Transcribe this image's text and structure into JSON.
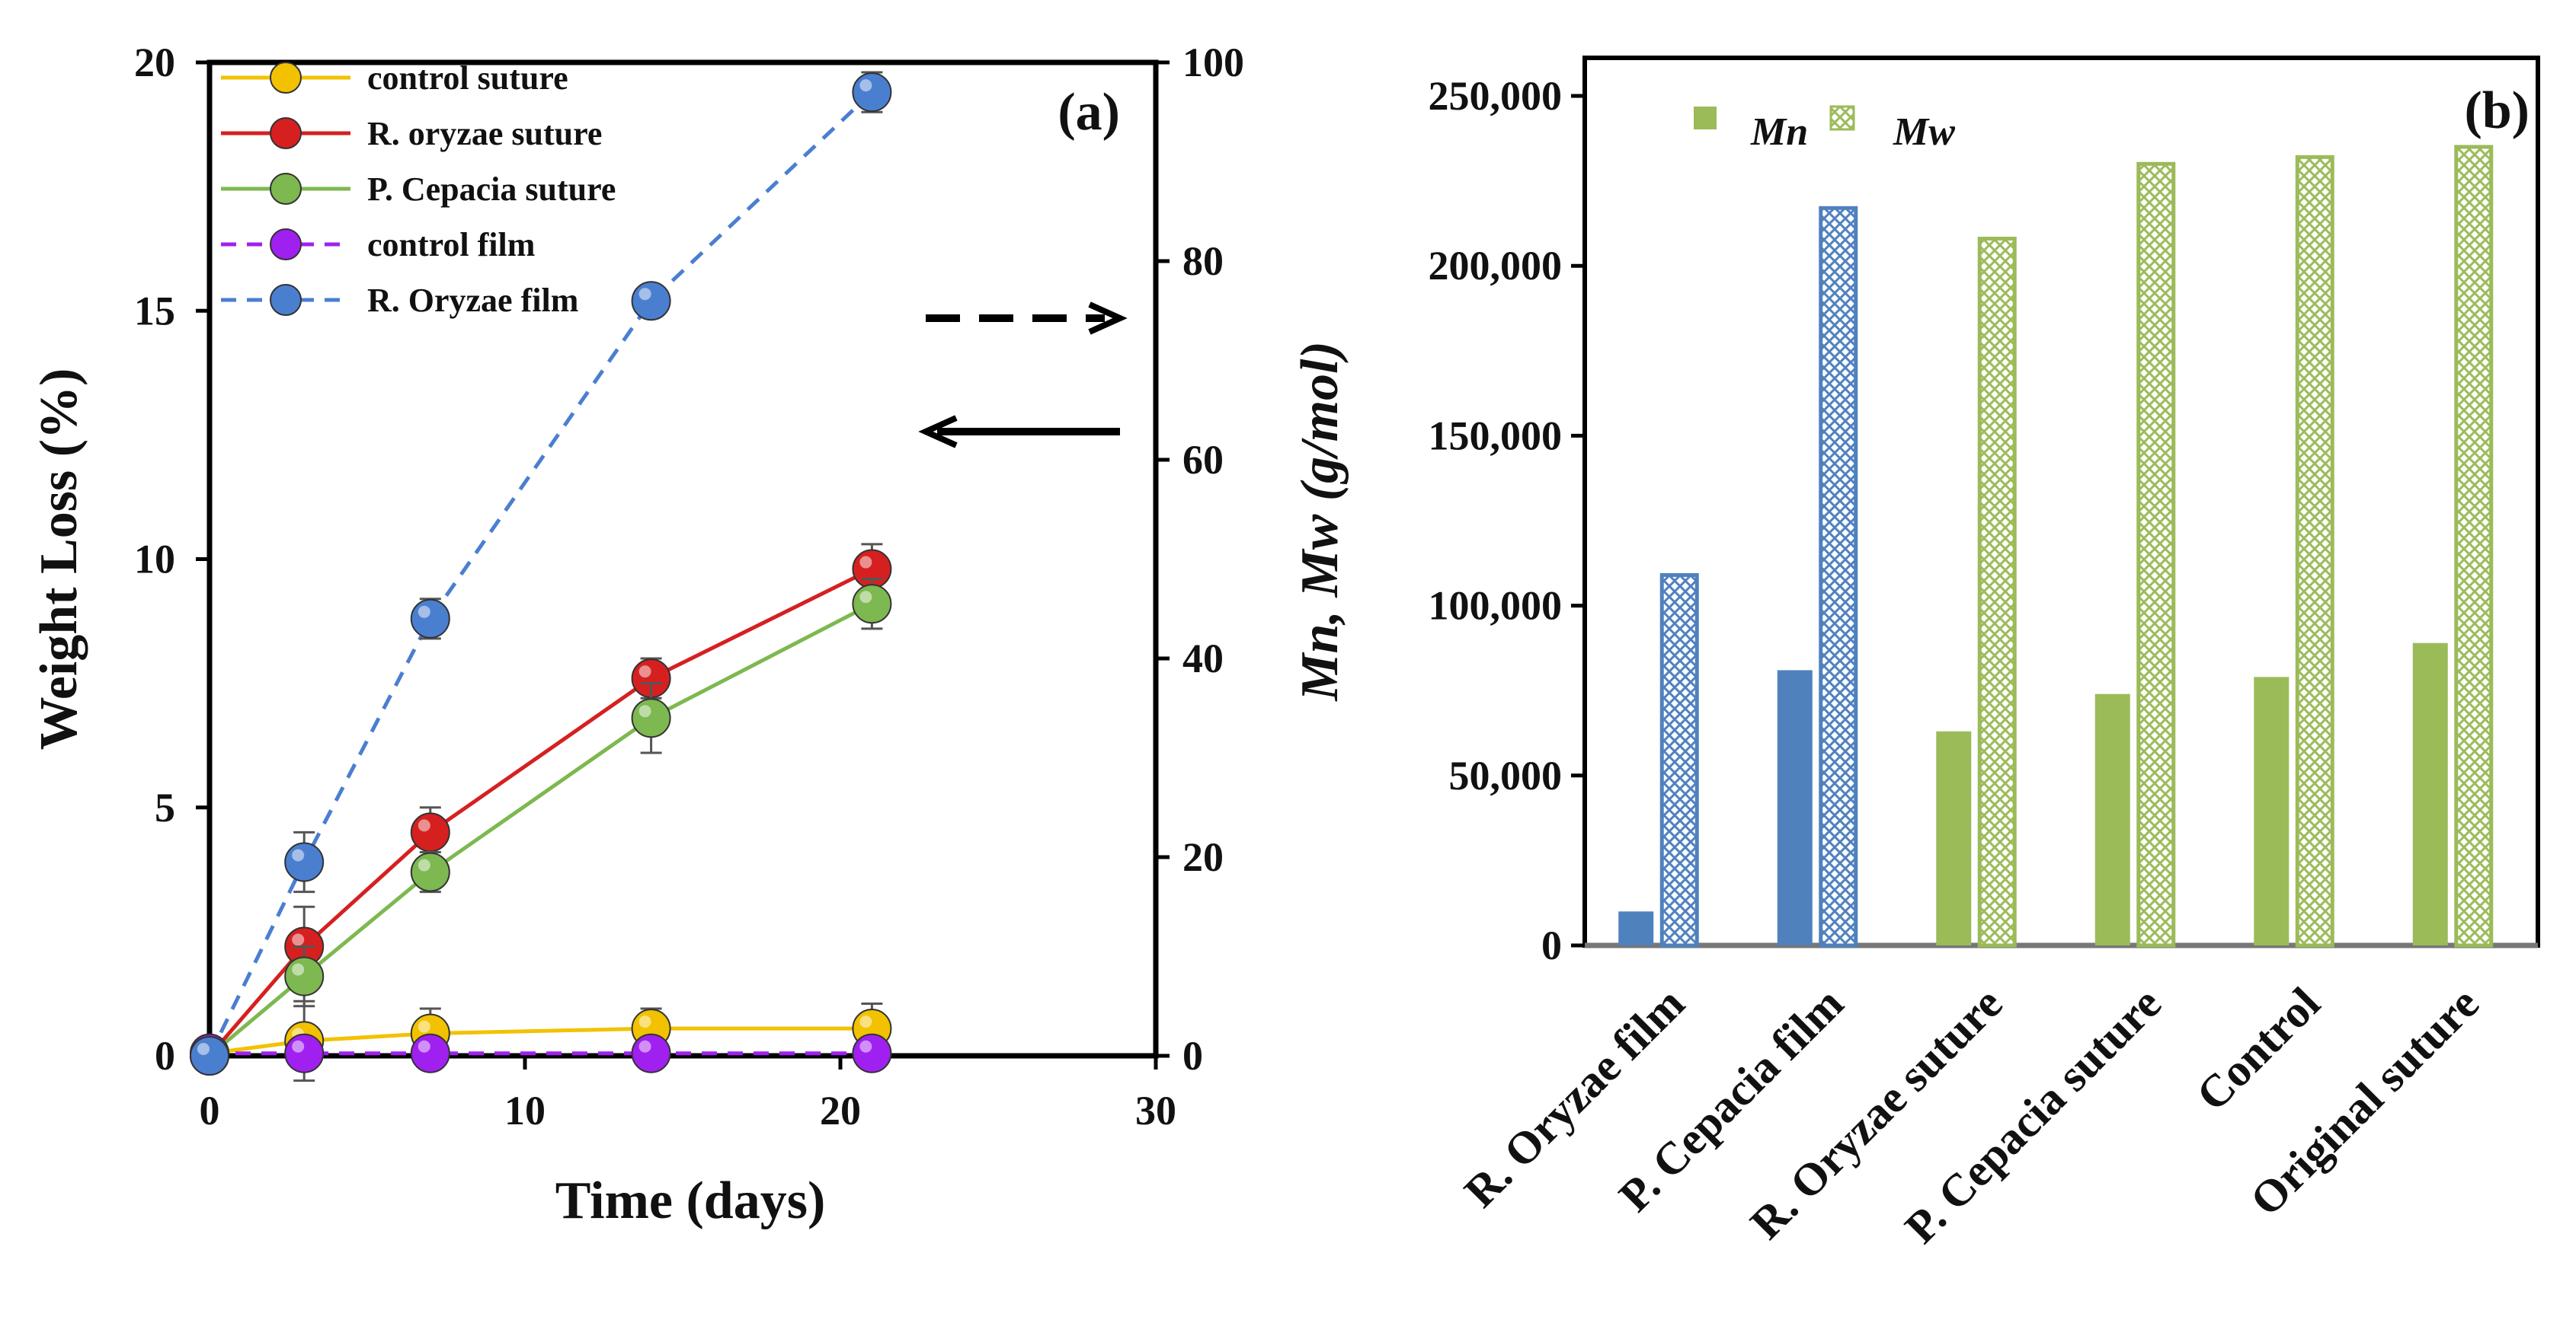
{
  "colors": {
    "blue": "#4F81BD",
    "green": "#9BBB59",
    "red": "#D62020",
    "yellow": "#F2C200",
    "purple": "#A020F0",
    "axis": "#000000"
  },
  "chart_data": [
    {
      "type": "line",
      "panel_label": "(a)",
      "xlabel": "Time (days)",
      "ylabel": "Weight Loss (%)",
      "y2label": "Mn, Mw (g/mol)",
      "xlim": [
        0,
        30
      ],
      "ylim": [
        0,
        20
      ],
      "y2lim": [
        0,
        100
      ],
      "xticks": [
        "0",
        "10",
        "20",
        "30"
      ],
      "yticks": [
        "0",
        "5",
        "10",
        "15",
        "20"
      ],
      "y2ticks": [
        "0",
        "20",
        "40",
        "60",
        "80",
        "100"
      ],
      "legend_position": "top-left",
      "series": [
        {
          "name": "control suture",
          "color": "#F2C200",
          "dash": false,
          "x": [
            0,
            3,
            7,
            14,
            21
          ],
          "y": [
            0.05,
            0.3,
            0.45,
            0.55,
            0.55
          ],
          "err": [
            0.1,
            0.8,
            0.5,
            0.4,
            0.5
          ]
        },
        {
          "name": "R. oryzae suture",
          "color": "#D62020",
          "dash": false,
          "x": [
            0,
            3,
            7,
            14,
            21
          ],
          "y": [
            0,
            2.2,
            4.5,
            7.6,
            9.8
          ],
          "err": [
            0.1,
            0.8,
            0.5,
            0.4,
            0.5
          ]
        },
        {
          "name": "P. Cepacia suture",
          "color": "#7DB850",
          "dash": false,
          "x": [
            0,
            3,
            7,
            14,
            21
          ],
          "y": [
            0,
            1.6,
            3.7,
            6.8,
            9.1
          ],
          "err": [
            0.1,
            0.6,
            0.4,
            0.7,
            0.5
          ]
        },
        {
          "name": "control film",
          "color": "#A020F0",
          "dash": true,
          "x": [
            0,
            3,
            7,
            14,
            21
          ],
          "y": [
            0.05,
            0.05,
            0.05,
            0.05,
            0.05
          ],
          "err": [
            0,
            0,
            0,
            0,
            0
          ]
        },
        {
          "name": "R. Oryzae film",
          "color": "#4A7FD0",
          "dash": true,
          "x": [
            0,
            3,
            7,
            14,
            21
          ],
          "y": [
            0,
            3.9,
            8.8,
            15.2,
            19.4
          ],
          "err": [
            0.1,
            0.6,
            0.4,
            0.3,
            0.4
          ]
        }
      ]
    },
    {
      "type": "bar",
      "panel_label": "(b)",
      "ylim": [
        0,
        250000
      ],
      "yticks": [
        "0",
        "50,000",
        "100,000",
        "150,000",
        "200,000",
        "250,000"
      ],
      "categories": [
        "R. Oryzae film",
        "P. Cepacia film",
        "R. Oryzae  suture",
        "P. Cepacia  suture",
        "Control",
        "Original suture"
      ],
      "bar_colors": [
        "#4F81BD",
        "#4F81BD",
        "#9BBB59",
        "#9BBB59",
        "#9BBB59",
        "#9BBB59"
      ],
      "legend_position": "top-left",
      "series": [
        {
          "name": "Mn",
          "values": [
            10000,
            81000,
            63000,
            74000,
            79000,
            89000
          ]
        },
        {
          "name": "Mw",
          "values": [
            109000,
            217000,
            208000,
            230000,
            232000,
            235000
          ]
        }
      ]
    }
  ]
}
